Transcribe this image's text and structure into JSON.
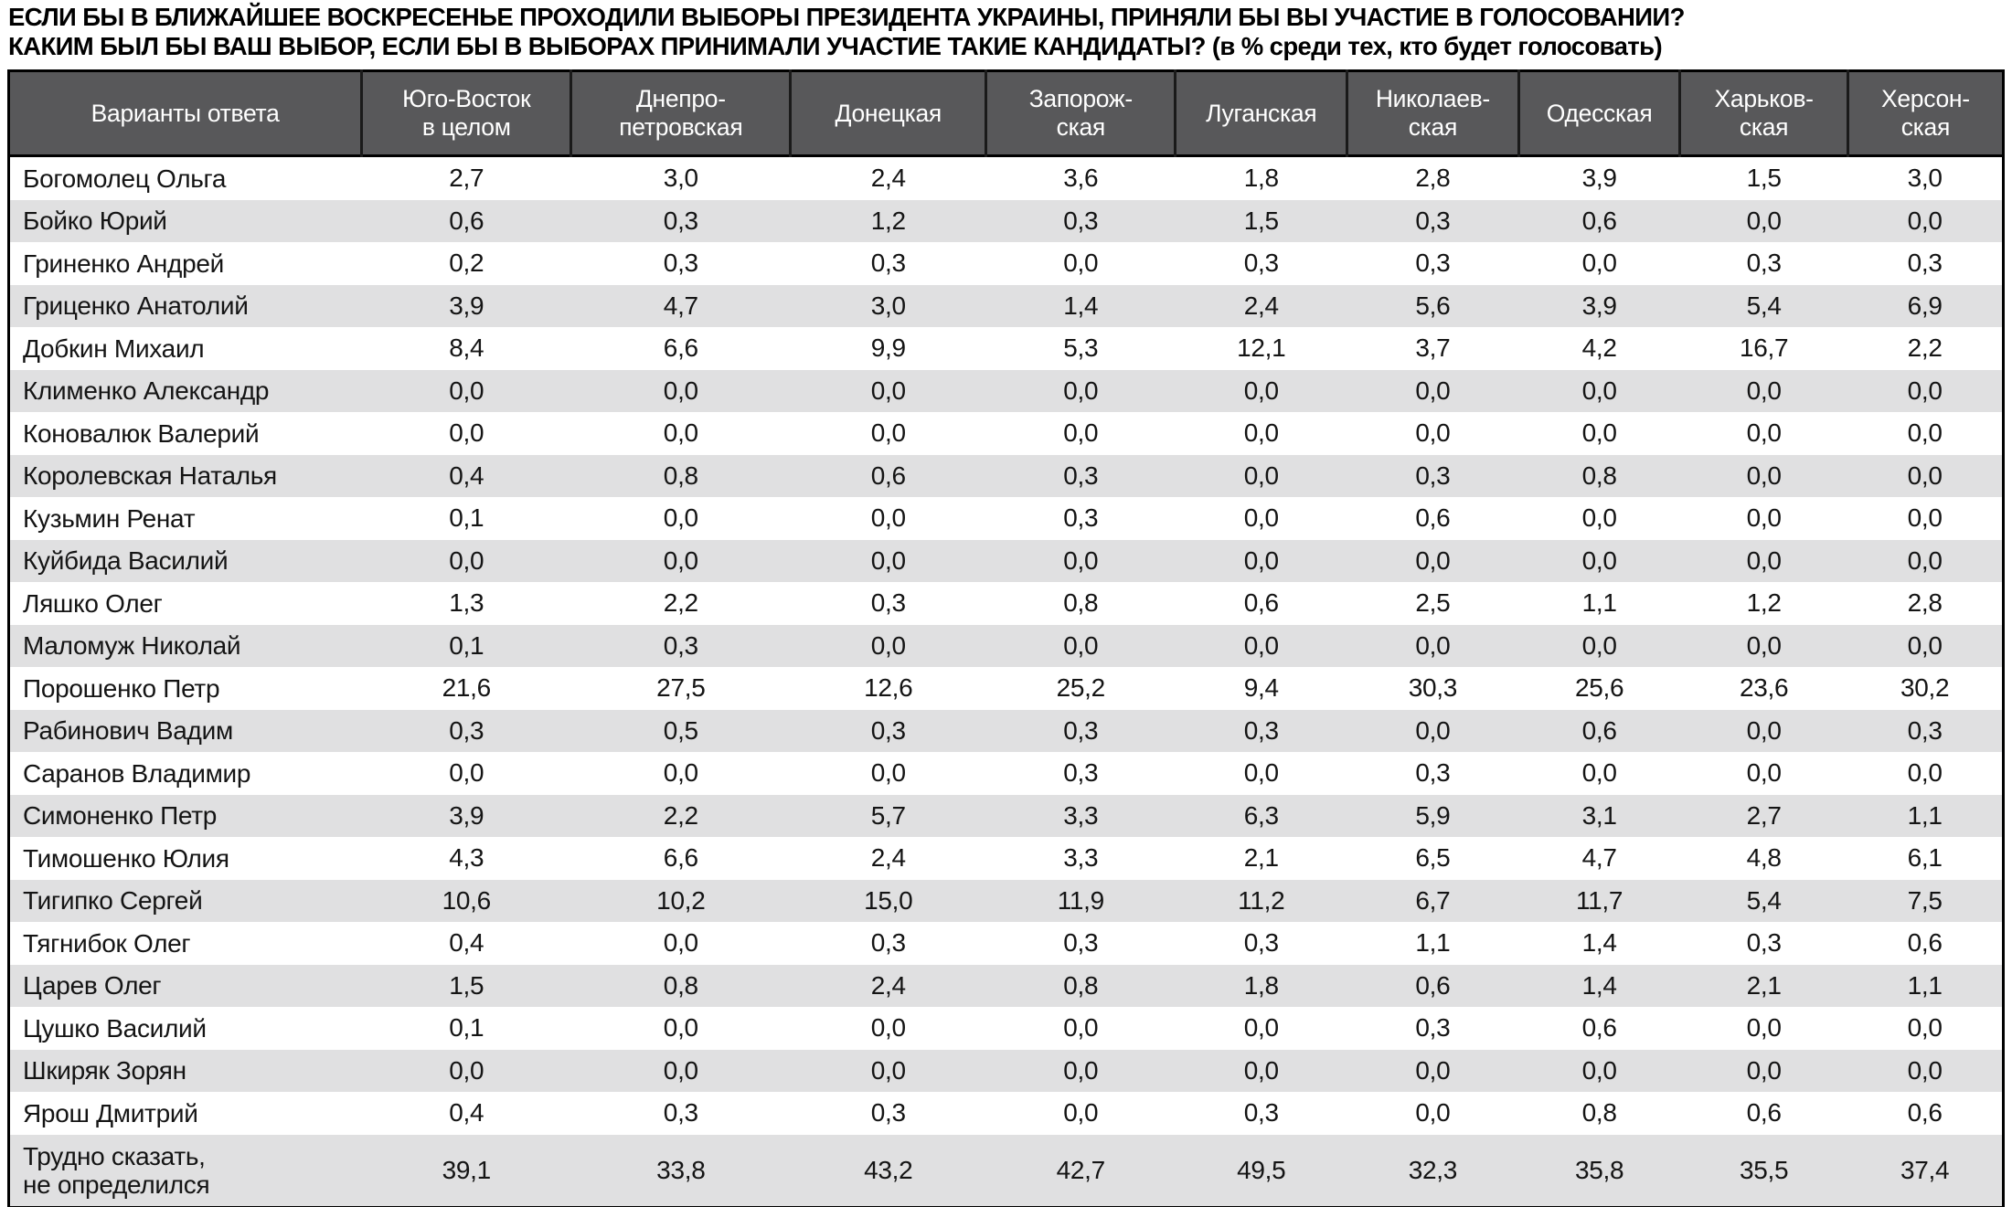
{
  "title": {
    "line1": "ЕСЛИ БЫ В БЛИЖАЙШЕЕ ВОСКРЕСЕНЬЕ ПРОХОДИЛИ ВЫБОРЫ ПРЕЗИДЕНТА УКРАИНЫ, ПРИНЯЛИ БЫ ВЫ УЧАСТИЕ В ГОЛОСОВАНИИ?",
    "line2": "КАКИМ БЫЛ БЫ ВАШ ВЫБОР, ЕСЛИ БЫ В ВЫБОРАХ ПРИНИМАЛИ УЧАСТИЕ ТАКИЕ КАНДИДАТЫ? (в % среди тех, кто будет голосовать)"
  },
  "colors": {
    "header_bg": "#58585a",
    "header_text": "#ffffff",
    "stripe": "#e0e0e1",
    "border": "#000000"
  },
  "table": {
    "columns": [
      "Варианты ответа",
      "Юго-Восток\nв целом",
      "Днепро-\nпетровская",
      "Донецкая",
      "Запорож-\nская",
      "Луганская",
      "Николаев-\nская",
      "Одесская",
      "Харьков-\nская",
      "Херсон-\nская"
    ],
    "rows": [
      {
        "label": "Богомолец Ольга",
        "values": [
          "2,7",
          "3,0",
          "2,4",
          "3,6",
          "1,8",
          "2,8",
          "3,9",
          "1,5",
          "3,0"
        ]
      },
      {
        "label": "Бойко Юрий",
        "values": [
          "0,6",
          "0,3",
          "1,2",
          "0,3",
          "1,5",
          "0,3",
          "0,6",
          "0,0",
          "0,0"
        ]
      },
      {
        "label": "Гриненко Андрей",
        "values": [
          "0,2",
          "0,3",
          "0,3",
          "0,0",
          "0,3",
          "0,3",
          "0,0",
          "0,3",
          "0,3"
        ]
      },
      {
        "label": "Гриценко Анатолий",
        "values": [
          "3,9",
          "4,7",
          "3,0",
          "1,4",
          "2,4",
          "5,6",
          "3,9",
          "5,4",
          "6,9"
        ]
      },
      {
        "label": "Добкин Михаил",
        "values": [
          "8,4",
          "6,6",
          "9,9",
          "5,3",
          "12,1",
          "3,7",
          "4,2",
          "16,7",
          "2,2"
        ]
      },
      {
        "label": "Клименко Александр",
        "values": [
          "0,0",
          "0,0",
          "0,0",
          "0,0",
          "0,0",
          "0,0",
          "0,0",
          "0,0",
          "0,0"
        ]
      },
      {
        "label": "Коновалюк Валерий",
        "values": [
          "0,0",
          "0,0",
          "0,0",
          "0,0",
          "0,0",
          "0,0",
          "0,0",
          "0,0",
          "0,0"
        ]
      },
      {
        "label": "Королевская Наталья",
        "values": [
          "0,4",
          "0,8",
          "0,6",
          "0,3",
          "0,0",
          "0,3",
          "0,8",
          "0,0",
          "0,0"
        ]
      },
      {
        "label": "Кузьмин Ренат",
        "values": [
          "0,1",
          "0,0",
          "0,0",
          "0,3",
          "0,0",
          "0,6",
          "0,0",
          "0,0",
          "0,0"
        ]
      },
      {
        "label": "Куйбида Василий",
        "values": [
          "0,0",
          "0,0",
          "0,0",
          "0,0",
          "0,0",
          "0,0",
          "0,0",
          "0,0",
          "0,0"
        ]
      },
      {
        "label": "Ляшко Олег",
        "values": [
          "1,3",
          "2,2",
          "0,3",
          "0,8",
          "0,6",
          "2,5",
          "1,1",
          "1,2",
          "2,8"
        ]
      },
      {
        "label": "Маломуж Николай",
        "values": [
          "0,1",
          "0,3",
          "0,0",
          "0,0",
          "0,0",
          "0,0",
          "0,0",
          "0,0",
          "0,0"
        ]
      },
      {
        "label": "Порошенко Петр",
        "values": [
          "21,6",
          "27,5",
          "12,6",
          "25,2",
          "9,4",
          "30,3",
          "25,6",
          "23,6",
          "30,2"
        ]
      },
      {
        "label": "Рабинович Вадим",
        "values": [
          "0,3",
          "0,5",
          "0,3",
          "0,3",
          "0,3",
          "0,0",
          "0,6",
          "0,0",
          "0,3"
        ]
      },
      {
        "label": "Саранов Владимир",
        "values": [
          "0,0",
          "0,0",
          "0,0",
          "0,3",
          "0,0",
          "0,3",
          "0,0",
          "0,0",
          "0,0"
        ]
      },
      {
        "label": "Симоненко Петр",
        "values": [
          "3,9",
          "2,2",
          "5,7",
          "3,3",
          "6,3",
          "5,9",
          "3,1",
          "2,7",
          "1,1"
        ]
      },
      {
        "label": "Тимошенко Юлия",
        "values": [
          "4,3",
          "6,6",
          "2,4",
          "3,3",
          "2,1",
          "6,5",
          "4,7",
          "4,8",
          "6,1"
        ]
      },
      {
        "label": "Тигипко Сергей",
        "values": [
          "10,6",
          "10,2",
          "15,0",
          "11,9",
          "11,2",
          "6,7",
          "11,7",
          "5,4",
          "7,5"
        ]
      },
      {
        "label": "Тягнибок Олег",
        "values": [
          "0,4",
          "0,0",
          "0,3",
          "0,3",
          "0,3",
          "1,1",
          "1,4",
          "0,3",
          "0,6"
        ]
      },
      {
        "label": "Царев Олег",
        "values": [
          "1,5",
          "0,8",
          "2,4",
          "0,8",
          "1,8",
          "0,6",
          "1,4",
          "2,1",
          "1,1"
        ]
      },
      {
        "label": "Цушко Василий",
        "values": [
          "0,1",
          "0,0",
          "0,0",
          "0,0",
          "0,0",
          "0,3",
          "0,6",
          "0,0",
          "0,0"
        ]
      },
      {
        "label": "Шкиряк Зорян",
        "values": [
          "0,0",
          "0,0",
          "0,0",
          "0,0",
          "0,0",
          "0,0",
          "0,0",
          "0,0",
          "0,0"
        ]
      },
      {
        "label": "Ярош Дмитрий",
        "values": [
          "0,4",
          "0,3",
          "0,3",
          "0,0",
          "0,3",
          "0,0",
          "0,8",
          "0,6",
          "0,6"
        ]
      },
      {
        "label": "Трудно сказать,\nне определился",
        "values": [
          "39,1",
          "33,8",
          "43,2",
          "42,7",
          "49,5",
          "32,3",
          "35,8",
          "35,5",
          "37,4"
        ]
      }
    ]
  }
}
